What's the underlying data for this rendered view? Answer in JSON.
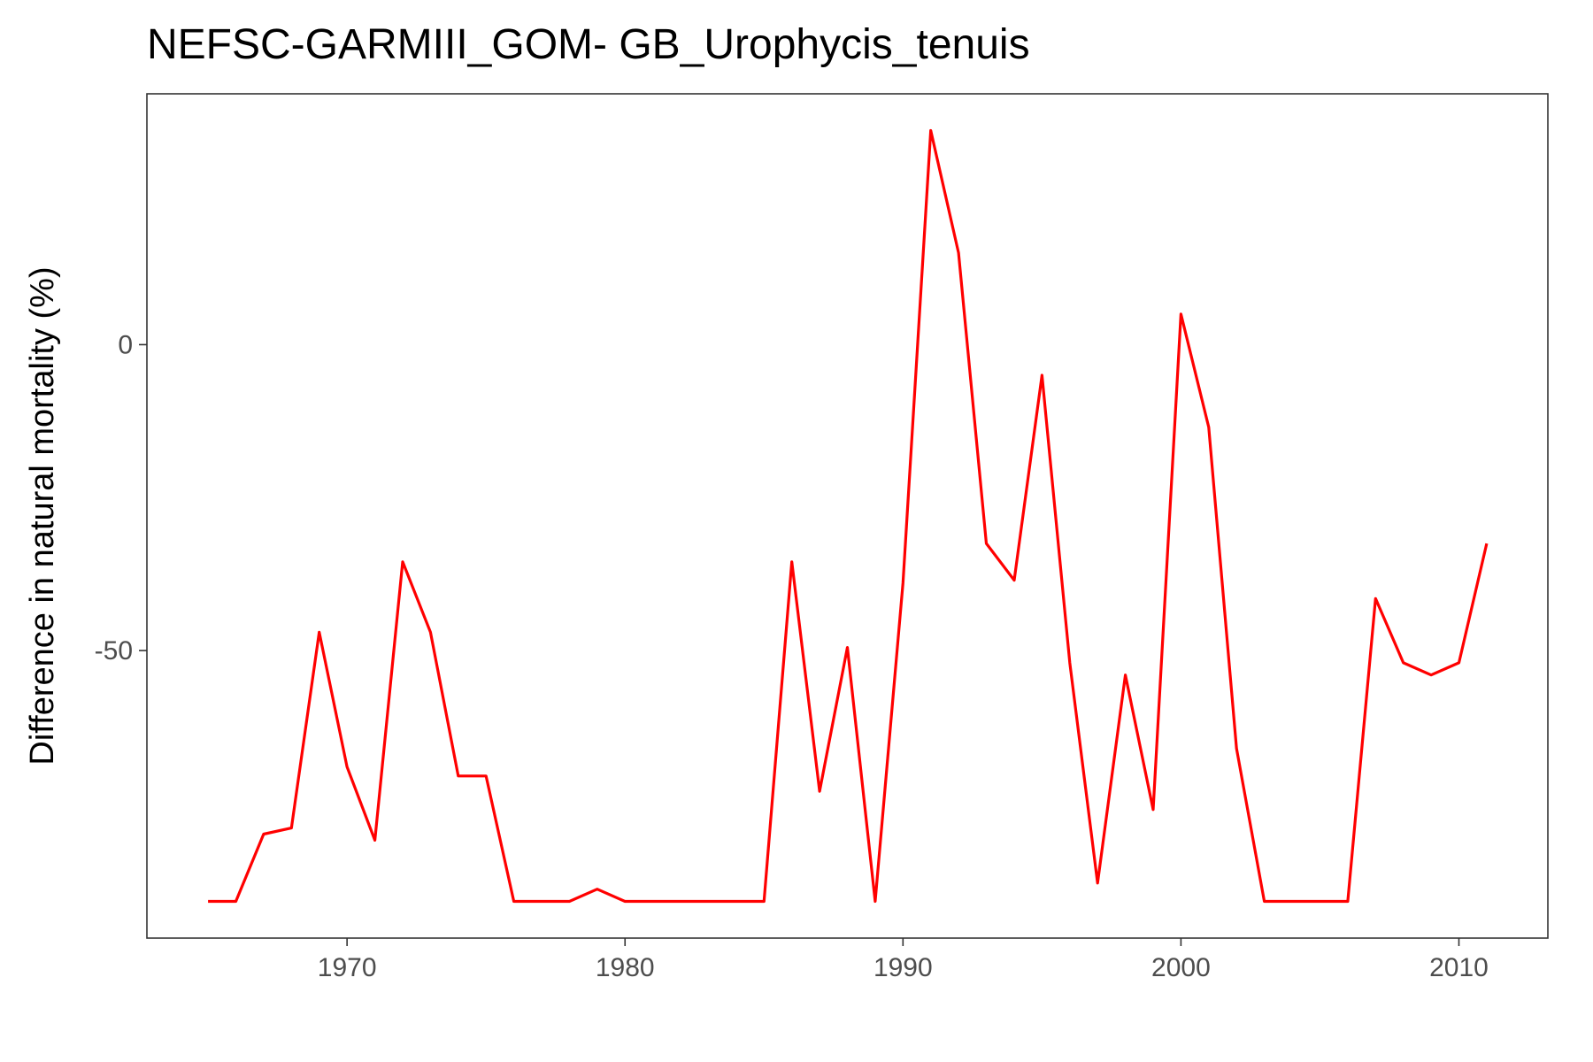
{
  "chart_data": {
    "type": "line",
    "title": "NEFSC-GARMIII_GOM- GB_Urophycis_tenuis",
    "xlabel": "",
    "ylabel": "Difference in natural mortality (%)",
    "xlim": [
      1962.8,
      2013.2
    ],
    "ylim": [
      -97,
      41
    ],
    "x_ticks": [
      1970,
      1980,
      1990,
      2000,
      2010
    ],
    "y_ticks": [
      0,
      -50
    ],
    "grid": false,
    "legend": "none",
    "series": [
      {
        "color": "#ff0000",
        "x": [
          1965,
          1966,
          1967,
          1968,
          1969,
          1970,
          1971,
          1972,
          1973,
          1974,
          1975,
          1976,
          1977,
          1978,
          1979,
          1980,
          1981,
          1982,
          1983,
          1984,
          1985,
          1986,
          1987,
          1988,
          1989,
          1990,
          1991,
          1992,
          1993,
          1994,
          1995,
          1996,
          1997,
          1998,
          1999,
          2000,
          2001,
          2002,
          2003,
          2004,
          2005,
          2006,
          2007,
          2008,
          2009,
          2010,
          2011
        ],
        "y": [
          -91,
          -91,
          -80,
          -79,
          -47,
          -69,
          -81,
          -35.5,
          -47,
          -70.5,
          -70.5,
          -91,
          -91,
          -91,
          -89,
          -91,
          -91,
          -91,
          -91,
          -91,
          -91,
          -35.5,
          -73,
          -49.5,
          -91,
          -39,
          35,
          15,
          -32.5,
          -38.5,
          -5,
          -52,
          -88,
          -54,
          -76,
          5,
          -13.5,
          -66,
          -91,
          -91,
          -91,
          -91,
          -41.5,
          -52,
          -54,
          -52,
          -32.5
        ]
      }
    ]
  }
}
